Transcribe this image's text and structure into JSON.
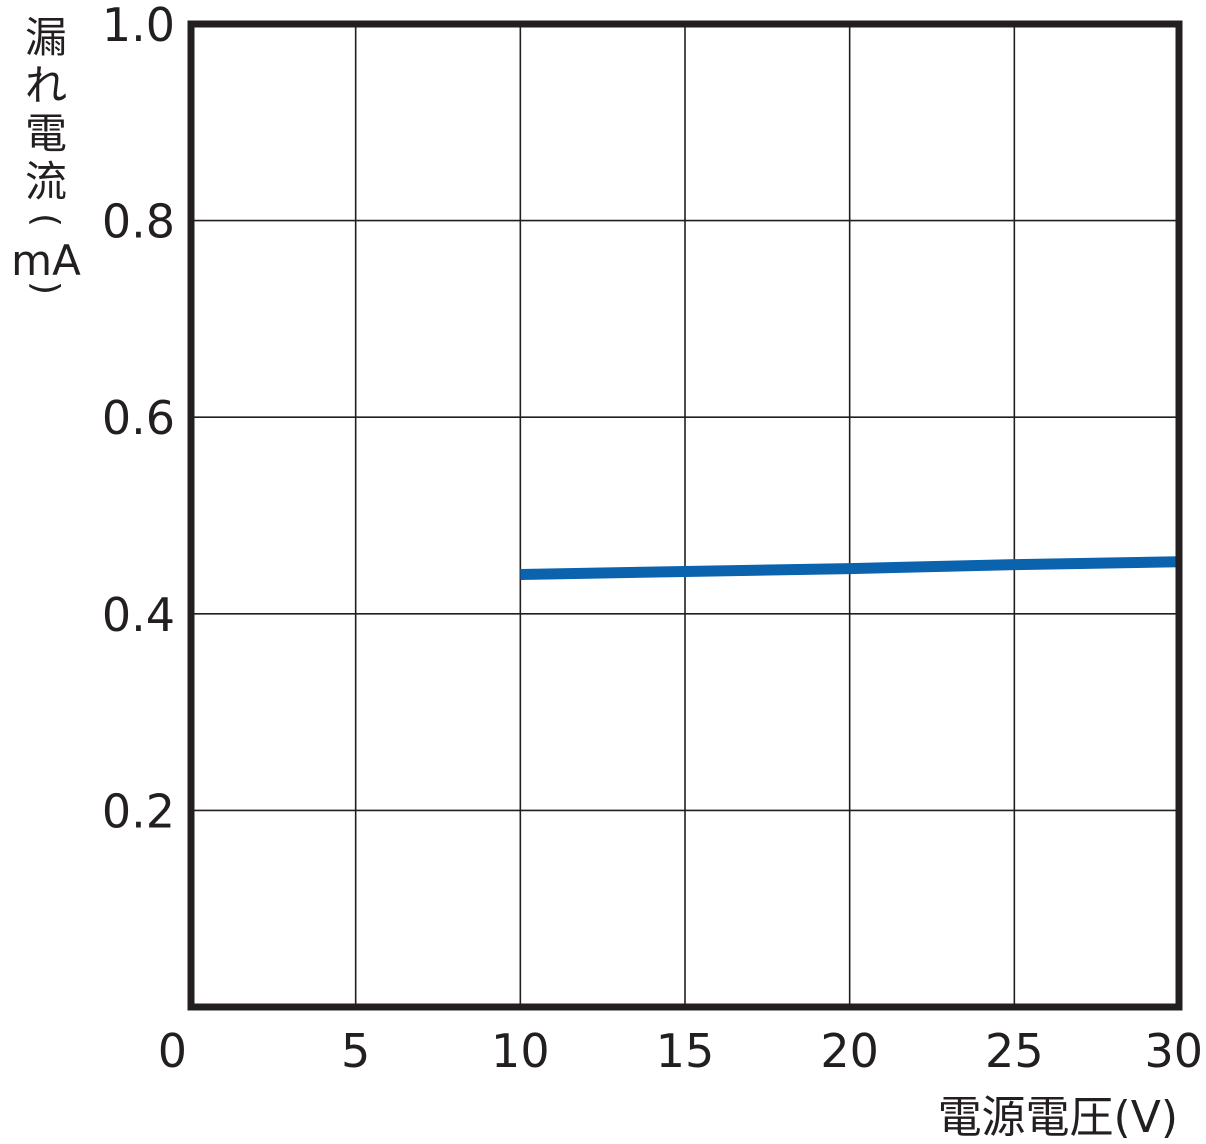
{
  "chart_data": {
    "type": "line",
    "title": "",
    "xlabel": "電源電圧(V)",
    "ylabel": "漏れ電流(mA)",
    "ylabel_lines": [
      "漏",
      "れ",
      "電",
      "流",
      "(",
      "mA",
      ")"
    ],
    "xlim": [
      0,
      30
    ],
    "ylim": [
      0,
      1.0
    ],
    "xticks": [
      0,
      5,
      10,
      15,
      20,
      25,
      30
    ],
    "xtick_labels": [
      "0",
      "5",
      "10",
      "15",
      "20",
      "25",
      "30"
    ],
    "yticks": [
      0.2,
      0.4,
      0.6,
      0.8,
      1.0
    ],
    "ytick_labels": [
      "0.2",
      "0.4",
      "0.6",
      "0.8",
      "1.0"
    ],
    "grid": true,
    "series": [
      {
        "color": "#0b62ad",
        "x": [
          10,
          15,
          20,
          25,
          30
        ],
        "y": [
          0.44,
          0.443,
          0.446,
          0.45,
          0.453
        ]
      }
    ]
  }
}
